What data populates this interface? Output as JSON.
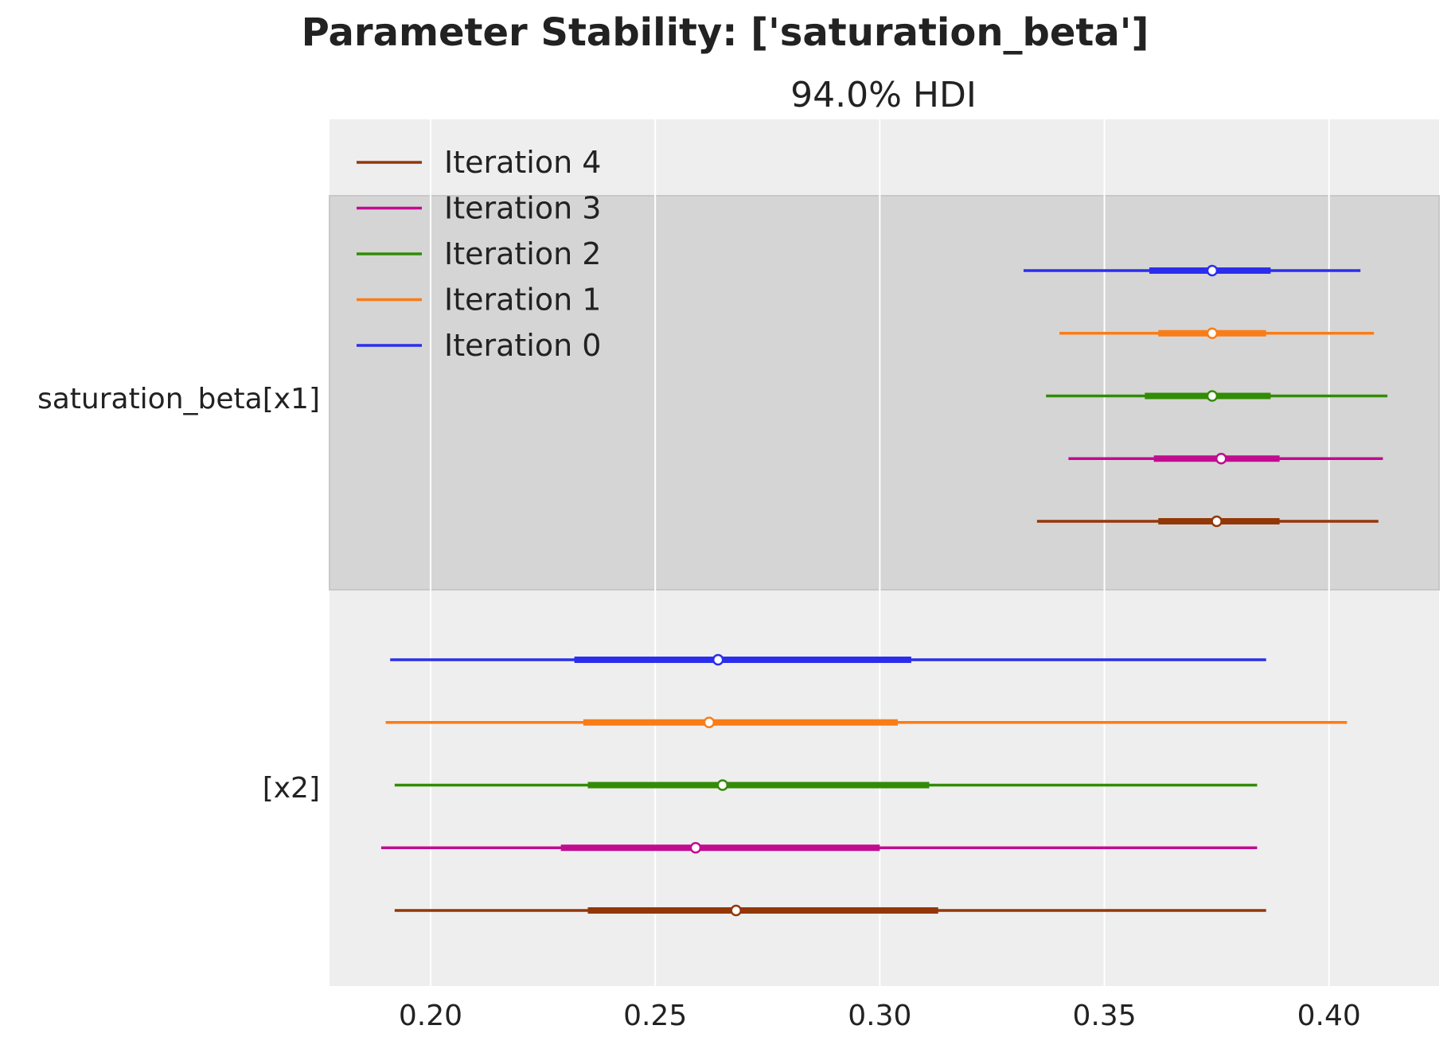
{
  "chart_data": {
    "type": "forest",
    "title": "Parameter Stability: ['saturation_beta']",
    "subtitle": "94.0% HDI",
    "xlabel": "",
    "ylabel": "",
    "xlim": [
      0.1775,
      0.4245
    ],
    "xticks": [
      0.2,
      0.25,
      0.3,
      0.35,
      0.4
    ],
    "xtick_labels": [
      "0.20",
      "0.25",
      "0.30",
      "0.35",
      "0.40"
    ],
    "grid": true,
    "legend_position": "top-left",
    "legend": [
      "Iteration 4",
      "Iteration 3",
      "Iteration 2",
      "Iteration 1",
      "Iteration 0"
    ],
    "parameters": [
      {
        "label": "saturation_beta[x1]",
        "shaded": true
      },
      {
        "label": "[x2]",
        "shaded": false
      }
    ],
    "series": [
      {
        "name": "Iteration 0",
        "color": "#2a2eec",
        "rows": [
          {
            "hdi94": [
              0.332,
              0.407
            ],
            "hdi50": [
              0.36,
              0.387
            ],
            "median": 0.374
          },
          {
            "hdi94": [
              0.191,
              0.386
            ],
            "hdi50": [
              0.232,
              0.307
            ],
            "median": 0.264
          }
        ]
      },
      {
        "name": "Iteration 1",
        "color": "#fa7c17",
        "rows": [
          {
            "hdi94": [
              0.34,
              0.41
            ],
            "hdi50": [
              0.362,
              0.386
            ],
            "median": 0.374
          },
          {
            "hdi94": [
              0.19,
              0.404
            ],
            "hdi50": [
              0.234,
              0.304
            ],
            "median": 0.262
          }
        ]
      },
      {
        "name": "Iteration 2",
        "color": "#328c06",
        "rows": [
          {
            "hdi94": [
              0.337,
              0.413
            ],
            "hdi50": [
              0.359,
              0.387
            ],
            "median": 0.374
          },
          {
            "hdi94": [
              0.192,
              0.384
            ],
            "hdi50": [
              0.235,
              0.311
            ],
            "median": 0.265
          }
        ]
      },
      {
        "name": "Iteration 3",
        "color": "#c10c90",
        "rows": [
          {
            "hdi94": [
              0.342,
              0.412
            ],
            "hdi50": [
              0.361,
              0.389
            ],
            "median": 0.376
          },
          {
            "hdi94": [
              0.189,
              0.384
            ],
            "hdi50": [
              0.229,
              0.3
            ],
            "median": 0.259
          }
        ]
      },
      {
        "name": "Iteration 4",
        "color": "#933708",
        "rows": [
          {
            "hdi94": [
              0.335,
              0.411
            ],
            "hdi50": [
              0.362,
              0.389
            ],
            "median": 0.375
          },
          {
            "hdi94": [
              0.192,
              0.386
            ],
            "hdi50": [
              0.235,
              0.313
            ],
            "median": 0.268
          }
        ]
      }
    ]
  }
}
